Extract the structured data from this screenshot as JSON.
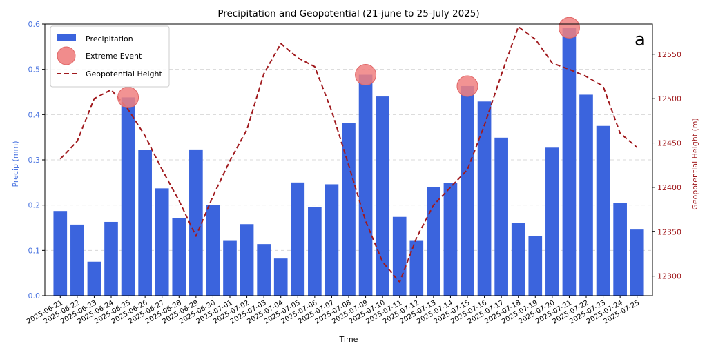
{
  "chart_data": {
    "type": "bar",
    "title": "Precipitation and Geopotential (21-june to 25-July 2025)",
    "panel_label": "a",
    "xlabel": "Time",
    "ylabel_left": "Precip (mm)",
    "ylabel_right": "Geopotential Height (m)",
    "categories": [
      "2025-06-21",
      "2025-06-22",
      "2025-06-23",
      "2025-06-24",
      "2025-06-25",
      "2025-06-26",
      "2025-06-27",
      "2025-06-28",
      "2025-06-29",
      "2025-06-30",
      "2025-07-01",
      "2025-07-02",
      "2025-07-03",
      "2025-07-04",
      "2025-07-05",
      "2025-07-06",
      "2025-07-07",
      "2025-07-08",
      "2025-07-09",
      "2025-07-10",
      "2025-07-11",
      "2025-07-12",
      "2025-07-13",
      "2025-07-14",
      "2025-07-15",
      "2025-07-16",
      "2025-07-17",
      "2025-07-18",
      "2025-07-19",
      "2025-07-20",
      "2025-07-21",
      "2025-07-22",
      "2025-07-23",
      "2025-07-24",
      "2025-07-25"
    ],
    "ylim_left": [
      0,
      0.6
    ],
    "yticks_left": [
      "0.0",
      "0.1",
      "0.2",
      "0.3",
      "0.4",
      "0.5",
      "0.6"
    ],
    "ylim_right": [
      12278,
      12584
    ],
    "yticks_right": [
      "12300",
      "12350",
      "12400",
      "12450",
      "12500",
      "12550"
    ],
    "grid": "horizontal dashed",
    "legend_position": "top-left",
    "series": [
      {
        "name": "Precipitation",
        "kind": "bar",
        "axis": "left",
        "color": "#3b64dd",
        "values": [
          0.187,
          0.157,
          0.075,
          0.163,
          0.438,
          0.322,
          0.237,
          0.172,
          0.323,
          0.2,
          0.121,
          0.158,
          0.114,
          0.082,
          0.25,
          0.195,
          0.246,
          0.381,
          0.488,
          0.44,
          0.174,
          0.121,
          0.24,
          0.249,
          0.463,
          0.429,
          0.349,
          0.16,
          0.132,
          0.327,
          0.592,
          0.444,
          0.375,
          0.205,
          0.146
        ]
      },
      {
        "name": "Extreme Event",
        "kind": "scatter",
        "axis": "left",
        "color": "#f08080",
        "points": [
          {
            "x": "2025-06-25",
            "y": 0.438
          },
          {
            "x": "2025-07-09",
            "y": 0.488
          },
          {
            "x": "2025-07-15",
            "y": 0.463
          },
          {
            "x": "2025-07-21",
            "y": 0.592
          }
        ]
      },
      {
        "name": "Geopotential Height",
        "kind": "line",
        "axis": "right",
        "color": "#a0191d",
        "style": "dashed",
        "values": [
          12432,
          12452,
          12500,
          12510,
          12488,
          12458,
          12420,
          12385,
          12345,
          12390,
          12430,
          12465,
          12528,
          12562,
          12546,
          12536,
          12486,
          12425,
          12362,
          12316,
          12293,
          12343,
          12380,
          12400,
          12420,
          12470,
          12527,
          12581,
          12567,
          12540,
          12533,
          12525,
          12514,
          12461,
          12445
        ]
      }
    ]
  }
}
